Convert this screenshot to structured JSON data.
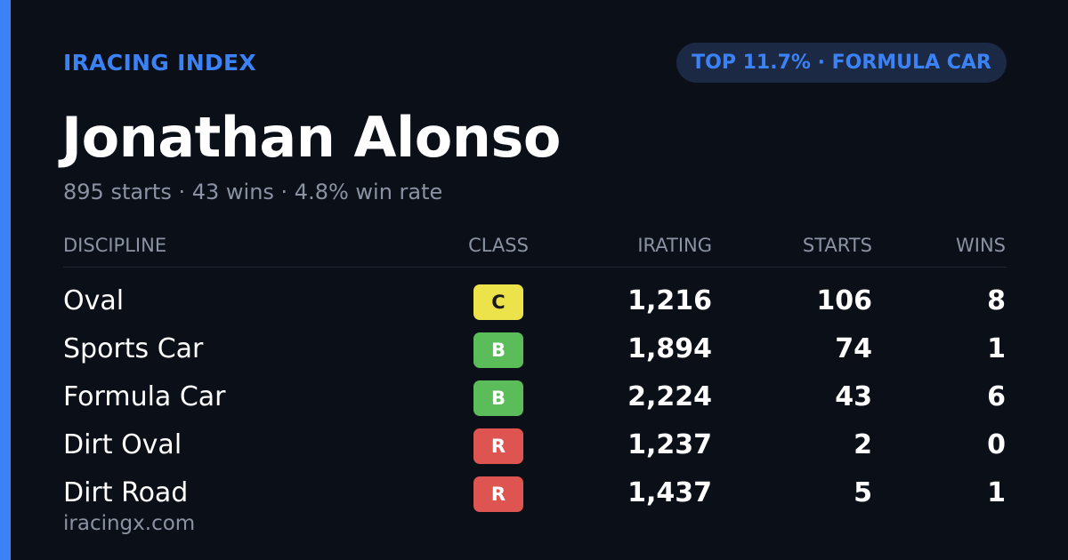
{
  "brand": "IRACING INDEX",
  "badge": "TOP 11.7% · FORMULA CAR",
  "name": "Jonathan Alonso",
  "subtitle": "895 starts · 43 wins · 4.8% win rate",
  "table": {
    "columns": [
      "DISCIPLINE",
      "CLASS",
      "IRATING",
      "STARTS",
      "WINS"
    ],
    "rows": [
      {
        "discipline": "Oval",
        "class": "C",
        "class_color": "#ece24a",
        "class_text_color": "#1a1a1a",
        "irating": "1,216",
        "starts": "106",
        "wins": "8"
      },
      {
        "discipline": "Sports Car",
        "class": "B",
        "class_color": "#5bbd5a",
        "class_text_color": "#ffffff",
        "irating": "1,894",
        "starts": "74",
        "wins": "1"
      },
      {
        "discipline": "Formula Car",
        "class": "B",
        "class_color": "#5bbd5a",
        "class_text_color": "#ffffff",
        "irating": "2,224",
        "starts": "43",
        "wins": "6"
      },
      {
        "discipline": "Dirt Oval",
        "class": "R",
        "class_color": "#dd5450",
        "class_text_color": "#ffffff",
        "irating": "1,237",
        "starts": "2",
        "wins": "0"
      },
      {
        "discipline": "Dirt Road",
        "class": "R",
        "class_color": "#dd5450",
        "class_text_color": "#ffffff",
        "irating": "1,437",
        "starts": "5",
        "wins": "1"
      }
    ]
  },
  "footer": "iracingx.com"
}
